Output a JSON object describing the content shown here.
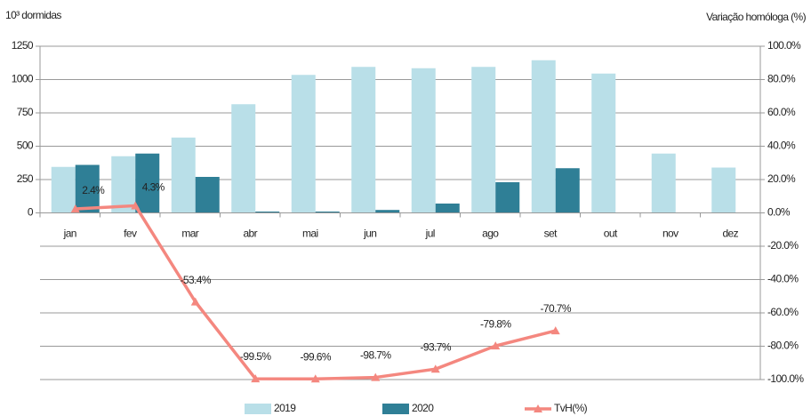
{
  "chart_data": {
    "type": "bar",
    "ylabel": "10³ dormidas",
    "y2label": "Variação homóloga (%)",
    "categories": [
      "jan",
      "fev",
      "mar",
      "abr",
      "mai",
      "jun",
      "jul",
      "ago",
      "set",
      "out",
      "nov",
      "dez"
    ],
    "series": [
      {
        "name": "2019",
        "color": "#b9dfe8",
        "values": [
          345,
          425,
          565,
          815,
          1035,
          1095,
          1085,
          1095,
          1145,
          1045,
          445,
          340
        ]
      },
      {
        "name": "2020",
        "color": "#2f7f96",
        "values": [
          360,
          445,
          270,
          10,
          10,
          22,
          70,
          230,
          335,
          null,
          null,
          null
        ]
      },
      {
        "name": "TvH(%)",
        "color": "#f4877f",
        "type": "line",
        "axis": "y2",
        "values": [
          2.4,
          4.3,
          -53.4,
          -99.5,
          -99.6,
          -98.7,
          -93.7,
          -79.8,
          -70.7,
          null,
          null,
          null
        ],
        "value_labels": [
          "2.4%",
          "4.3%",
          "-53.4%",
          "-99.5%",
          "-99.6%",
          "-98.7%",
          "-93.7%",
          "-79.8%",
          "-70.7%",
          null,
          null,
          null
        ]
      }
    ],
    "ylim": [
      -1250,
      1250
    ],
    "yticks": [
      0,
      250,
      500,
      750,
      1000,
      1250
    ],
    "y2lim": [
      -100,
      100
    ],
    "y2ticks": [
      {
        "value": 100,
        "label": "100.0%"
      },
      {
        "value": 80,
        "label": "80.0%"
      },
      {
        "value": 60,
        "label": "60.0%"
      },
      {
        "value": 40,
        "label": "40.0%"
      },
      {
        "value": 20,
        "label": "20.0%"
      },
      {
        "value": 0,
        "label": "0.0%"
      },
      {
        "value": -20,
        "label": "-20.0%"
      },
      {
        "value": -40,
        "label": "-40.0%"
      },
      {
        "value": -60,
        "label": "-60.0%"
      },
      {
        "value": -80,
        "label": "-80.0%"
      },
      {
        "value": -100,
        "label": "-100.0%"
      }
    ],
    "grid": true,
    "legend": "bottom"
  }
}
